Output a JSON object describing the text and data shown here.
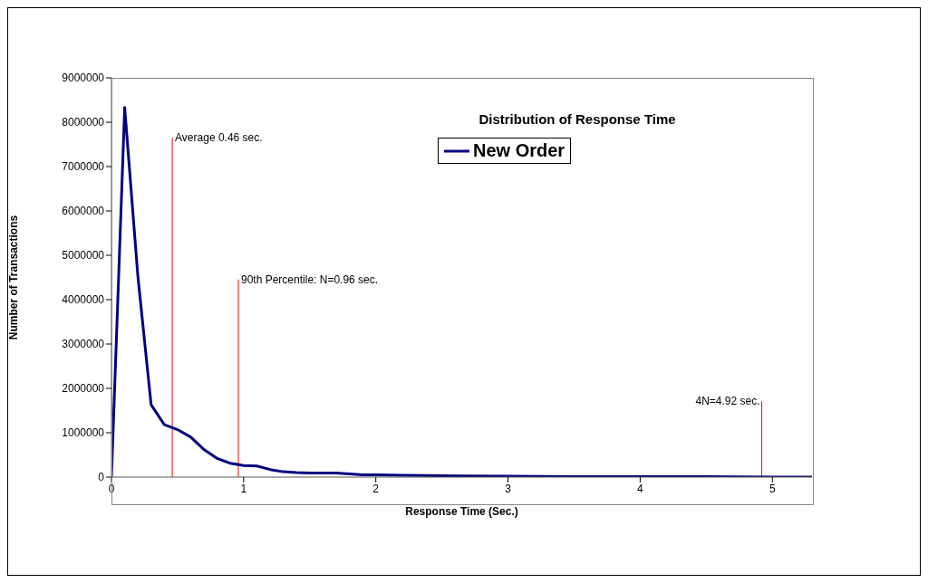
{
  "chart_data": {
    "type": "line",
    "title": "Distribution of Response Time",
    "xlabel": "Response Time (Sec.)",
    "ylabel": "Number of Transactions",
    "x": [
      0,
      0.1,
      0.2,
      0.3,
      0.4,
      0.5,
      0.6,
      0.7,
      0.8,
      0.9,
      1.0,
      1.1,
      1.2,
      1.3,
      1.4,
      1.5,
      1.6,
      1.7,
      1.8,
      1.9,
      2.0,
      2.2,
      2.5,
      3.0,
      3.5,
      4.0,
      4.5,
      5.0,
      5.3
    ],
    "series": [
      {
        "name": "New Order",
        "color": "#000080",
        "values": [
          0,
          8330000,
          4520000,
          1630000,
          1180000,
          1070000,
          900000,
          620000,
          420000,
          310000,
          260000,
          250000,
          170000,
          120000,
          100000,
          90000,
          90000,
          90000,
          70000,
          50000,
          50000,
          40000,
          30000,
          20000,
          10000,
          10000,
          10000,
          0,
          0
        ]
      }
    ],
    "xlim": [
      0,
      5.3
    ],
    "xticks": [
      0,
      1,
      2,
      3,
      4,
      5
    ],
    "ylim": [
      0,
      9000000
    ],
    "yticks": [
      0,
      1000000,
      2000000,
      3000000,
      4000000,
      5000000,
      6000000,
      7000000,
      8000000,
      9000000
    ],
    "ref_lines": [
      {
        "axis": "x",
        "value": 0.46,
        "label": "Average 0.46 sec.",
        "color": "#ff0000"
      },
      {
        "axis": "x",
        "value": 0.96,
        "label": "90th Percentile: N=0.96 sec.",
        "color": "#ff0000"
      },
      {
        "axis": "x",
        "value": 4.92,
        "label": "4N=4.92 sec.",
        "color": "#ff0000"
      }
    ],
    "grid": false,
    "legend": "top right",
    "marker": "none",
    "line_style": "solid"
  }
}
